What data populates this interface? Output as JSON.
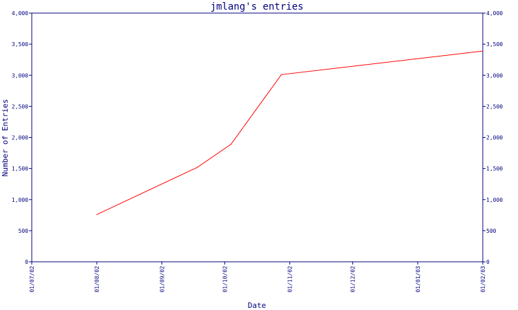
{
  "chart_data": {
    "type": "line",
    "title": "jmlang's entries",
    "xlabel": "Date",
    "ylabel": "Number of Entries",
    "ylim": [
      0,
      4000
    ],
    "yticks": [
      {
        "value": 0,
        "label": "0"
      },
      {
        "value": 500,
        "label": "500"
      },
      {
        "value": 1000,
        "label": "1,000"
      },
      {
        "value": 1500,
        "label": "1,500"
      },
      {
        "value": 2000,
        "label": "2,000"
      },
      {
        "value": 2500,
        "label": "2,500"
      },
      {
        "value": 3000,
        "label": "3,000"
      },
      {
        "value": 3500,
        "label": "3,500"
      },
      {
        "value": 4000,
        "label": "4,000"
      }
    ],
    "xlim": [
      "2002-07-01",
      "2003-02-01"
    ],
    "xticks": [
      {
        "date": "2002-07-01",
        "label": "01/07/02"
      },
      {
        "date": "2002-08-01",
        "label": "01/08/02"
      },
      {
        "date": "2002-09-01",
        "label": "01/09/02"
      },
      {
        "date": "2002-10-01",
        "label": "01/10/02"
      },
      {
        "date": "2002-11-01",
        "label": "01/11/02"
      },
      {
        "date": "2002-12-01",
        "label": "01/12/02"
      },
      {
        "date": "2003-01-01",
        "label": "01/01/03"
      },
      {
        "date": "2003-02-01",
        "label": "01/02/03"
      }
    ],
    "series": [
      {
        "color": "#ff0000",
        "points": [
          {
            "x": "2002-08-01",
            "y": 760
          },
          {
            "x": "2002-09-18",
            "y": 1520
          },
          {
            "x": "2002-10-04",
            "y": 1890
          },
          {
            "x": "2002-10-28",
            "y": 3010
          },
          {
            "x": "2003-02-01",
            "y": 3390
          }
        ]
      }
    ],
    "colors": {
      "axis": "#00007f",
      "line": "#ff0000"
    }
  }
}
